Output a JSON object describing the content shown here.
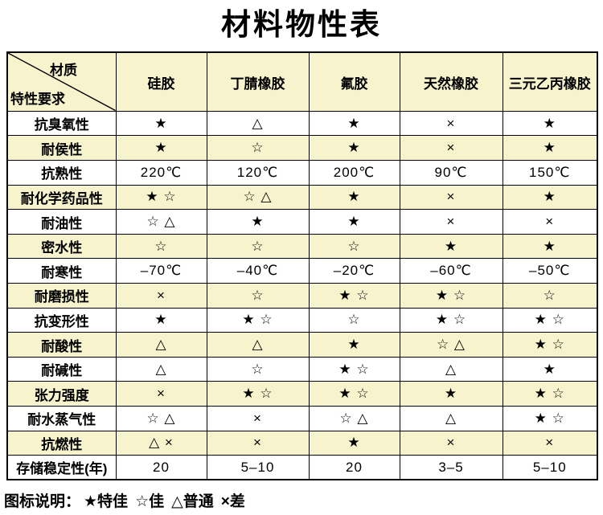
{
  "title": "材料物性表",
  "chart_data": {
    "type": "table",
    "corner_top_right": "材质",
    "corner_bottom_left": "特性要求",
    "columns": [
      "硅胶",
      "丁腈橡胶",
      "氟胶",
      "天然橡胶",
      "三元乙丙橡胶"
    ],
    "rows": [
      {
        "label": "抗臭氧性",
        "values": [
          "★",
          "△",
          "★",
          "×",
          "★"
        ]
      },
      {
        "label": "耐侯性",
        "values": [
          "★",
          "☆",
          "★",
          "×",
          "★"
        ]
      },
      {
        "label": "抗熟性",
        "values": [
          "220℃",
          "120℃",
          "200℃",
          "90℃",
          "150℃"
        ]
      },
      {
        "label": "耐化学药品性",
        "values": [
          "★ ☆",
          "☆ △",
          "★",
          "×",
          "★"
        ]
      },
      {
        "label": "耐油性",
        "values": [
          "☆ △",
          "★",
          "★",
          "×",
          "×"
        ]
      },
      {
        "label": "密水性",
        "values": [
          "☆",
          "☆",
          "☆",
          "★",
          "★"
        ]
      },
      {
        "label": "耐寒性",
        "values": [
          "–70℃",
          "–40℃",
          "–20℃",
          "–60℃",
          "–50℃"
        ]
      },
      {
        "label": "耐磨损性",
        "values": [
          "×",
          "☆",
          "★ ☆",
          "★ ☆",
          "☆"
        ]
      },
      {
        "label": "抗变形性",
        "values": [
          "★",
          "★ ☆",
          "☆",
          "★ ☆",
          "★ ☆"
        ]
      },
      {
        "label": "耐酸性",
        "values": [
          "△",
          "△",
          "★",
          "☆ △",
          "★ ☆"
        ]
      },
      {
        "label": "耐碱性",
        "values": [
          "△",
          "☆",
          "★ ☆",
          "△",
          "★"
        ]
      },
      {
        "label": "张力强度",
        "values": [
          "×",
          "★ ☆",
          "★ ☆",
          "★",
          "★ ☆"
        ]
      },
      {
        "label": "耐水蒸气性",
        "values": [
          "☆ △",
          "×",
          "☆ △",
          "△",
          "★ ☆"
        ]
      },
      {
        "label": "抗燃性",
        "values": [
          "△ ×",
          "×",
          "★",
          "×",
          "×"
        ]
      },
      {
        "label": "存储稳定性(年)",
        "values": [
          "20",
          "5–10",
          "20",
          "3–5",
          "5–10"
        ]
      }
    ]
  },
  "legend": {
    "prefix": "图标说明：",
    "items": [
      {
        "symbol": "★",
        "label": "特佳"
      },
      {
        "symbol": "☆",
        "label": "佳"
      },
      {
        "symbol": "△",
        "label": "普通"
      },
      {
        "symbol": "×",
        "label": "差"
      }
    ]
  },
  "colors": {
    "stripe": "#f7f3cd",
    "border": "#000000",
    "background": "#ffffff",
    "text": "#000000"
  }
}
